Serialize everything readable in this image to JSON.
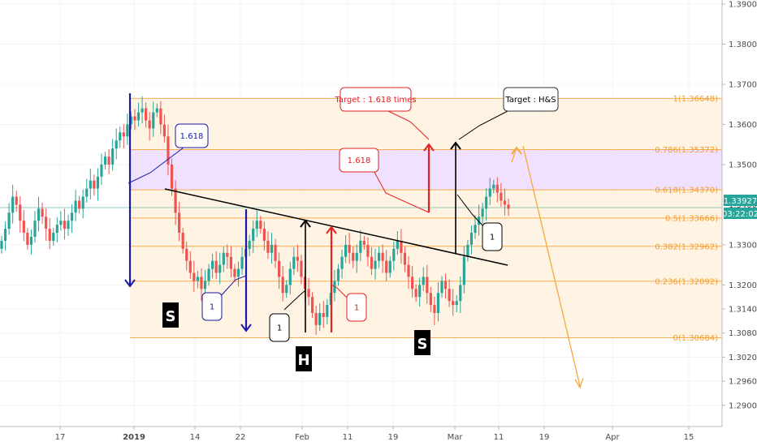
{
  "chart_data": {
    "type": "candlestick",
    "title": "",
    "xlabel": "",
    "ylabel": "",
    "ylim": [
      1.2848,
      1.3908
    ],
    "yticks": [
      "1.39000",
      "1.38000",
      "1.37000",
      "1.36000",
      "1.35000",
      "1.34000",
      "1.33000",
      "1.32000",
      "1.31400",
      "1.30800",
      "1.30200",
      "1.29600",
      "1.29000"
    ],
    "ytick_values": [
      1.39,
      1.38,
      1.37,
      1.36,
      1.35,
      1.34,
      1.33,
      1.32,
      1.314,
      1.308,
      1.302,
      1.296,
      1.29
    ],
    "xticks": [
      "17",
      "2019",
      "14",
      "22",
      "Feb",
      "11",
      "19",
      "Mar",
      "11",
      "19",
      "Apr",
      "15"
    ],
    "xtick_positions": [
      74,
      165,
      240,
      296,
      372,
      428,
      484,
      560,
      614,
      670,
      754,
      848
    ],
    "last_price": "1.33927",
    "countdown": "03:22:02",
    "fib_levels": [
      {
        "label": "1(1.36648)",
        "value": 1.36648
      },
      {
        "label": "0.786(1.35372)",
        "value": 1.35372
      },
      {
        "label": "0.618(1.34370)",
        "value": 1.3437
      },
      {
        "label": "0.5(1.33666)",
        "value": 1.33666
      },
      {
        "label": "0.382(1.32962)",
        "value": 1.32962
      },
      {
        "label": "0.236(1.32092)",
        "value": 1.32092
      },
      {
        "label": "0(1.30684)",
        "value": 1.30684
      }
    ],
    "closes": [
      1.331,
      1.334,
      1.338,
      1.342,
      1.34,
      1.336,
      1.333,
      1.33,
      1.332,
      1.336,
      1.339,
      1.337,
      1.334,
      1.331,
      1.333,
      1.335,
      1.336,
      1.334,
      1.336,
      1.338,
      1.341,
      1.339,
      1.342,
      1.344,
      1.346,
      1.344,
      1.347,
      1.35,
      1.352,
      1.35,
      1.354,
      1.356,
      1.358,
      1.357,
      1.36,
      1.362,
      1.361,
      1.363,
      1.364,
      1.361,
      1.359,
      1.363,
      1.364,
      1.36,
      1.357,
      1.35,
      1.344,
      1.338,
      1.333,
      1.329,
      1.326,
      1.323,
      1.321,
      1.322,
      1.319,
      1.321,
      1.324,
      1.326,
      1.323,
      1.325,
      1.328,
      1.327,
      1.324,
      1.322,
      1.324,
      1.327,
      1.329,
      1.331,
      1.334,
      1.336,
      1.334,
      1.331,
      1.328,
      1.33,
      1.326,
      1.322,
      1.318,
      1.32,
      1.324,
      1.327,
      1.326,
      1.322,
      1.319,
      1.317,
      1.313,
      1.31,
      1.313,
      1.312,
      1.315,
      1.318,
      1.321,
      1.324,
      1.327,
      1.33,
      1.328,
      1.326,
      1.328,
      1.331,
      1.33,
      1.327,
      1.324,
      1.326,
      1.328,
      1.326,
      1.323,
      1.326,
      1.329,
      1.331,
      1.328,
      1.325,
      1.322,
      1.319,
      1.317,
      1.32,
      1.322,
      1.318,
      1.315,
      1.313,
      1.318,
      1.321,
      1.319,
      1.316,
      1.315,
      1.316,
      1.32,
      1.327,
      1.33,
      1.333,
      1.335,
      1.337,
      1.339,
      1.342,
      1.344,
      1.345,
      1.343,
      1.341,
      1.34,
      1.339
    ],
    "callouts": {
      "target_1618": "Target : 1.618 times",
      "target_hs": "Target : H&S",
      "label_1618_blue": "1.618",
      "label_1618_red": "1.618",
      "one_a": "1",
      "one_b": "1",
      "one_c": "1",
      "one_d": "1",
      "shoulder_left": "S",
      "head": "H",
      "shoulder_right": "S"
    },
    "colors": {
      "up": "#26a69a",
      "down": "#ef5350",
      "fib": "#f59d2a",
      "fib_zone": "#fff1de",
      "fib_violet": "#ecdcff",
      "blue_arrow": "#1a1aa6",
      "red_arrow": "#e52020",
      "orange_projection": "#f5a93b"
    }
  }
}
